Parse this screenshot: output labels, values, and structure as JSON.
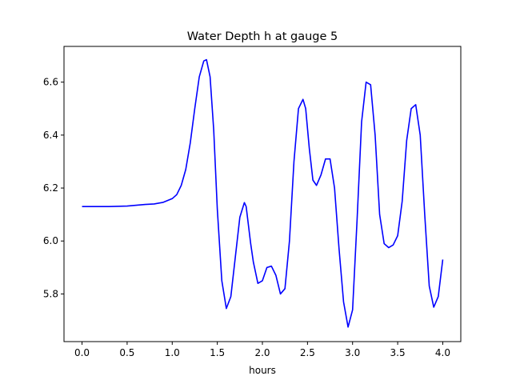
{
  "chart_data": {
    "type": "line",
    "title": "Water Depth h at gauge 5",
    "xlabel": "hours",
    "ylabel": "",
    "xlim": [
      -0.2,
      4.2
    ],
    "ylim": [
      5.62,
      6.735
    ],
    "xticks": [
      0.0,
      0.5,
      1.0,
      1.5,
      2.0,
      2.5,
      3.0,
      3.5,
      4.0
    ],
    "xtick_labels": [
      "0.0",
      "0.5",
      "1.0",
      "1.5",
      "2.0",
      "2.5",
      "3.0",
      "3.5",
      "4.0"
    ],
    "yticks": [
      5.8,
      6.0,
      6.2,
      6.4,
      6.6
    ],
    "ytick_labels": [
      "5.8",
      "6.0",
      "6.2",
      "6.4",
      "6.6"
    ],
    "grid": false,
    "legend": "none",
    "series": [
      {
        "color": "#0000ff",
        "x": [
          0.0,
          0.3,
          0.5,
          0.6,
          0.7,
          0.8,
          0.9,
          1.0,
          1.05,
          1.1,
          1.15,
          1.2,
          1.25,
          1.3,
          1.35,
          1.38,
          1.42,
          1.46,
          1.5,
          1.55,
          1.6,
          1.65,
          1.7,
          1.75,
          1.8,
          1.82,
          1.87,
          1.9,
          1.95,
          2.0,
          2.05,
          2.1,
          2.15,
          2.2,
          2.25,
          2.3,
          2.35,
          2.4,
          2.45,
          2.48,
          2.52,
          2.56,
          2.6,
          2.65,
          2.7,
          2.75,
          2.8,
          2.85,
          2.9,
          2.95,
          3.0,
          3.05,
          3.1,
          3.15,
          3.2,
          3.25,
          3.3,
          3.35,
          3.4,
          3.45,
          3.5,
          3.55,
          3.6,
          3.65,
          3.7,
          3.75,
          3.8,
          3.85,
          3.9,
          3.95,
          4.0
        ],
        "y": [
          6.13,
          6.13,
          6.132,
          6.135,
          6.138,
          6.14,
          6.146,
          6.16,
          6.175,
          6.21,
          6.27,
          6.37,
          6.5,
          6.62,
          6.68,
          6.685,
          6.62,
          6.42,
          6.12,
          5.85,
          5.745,
          5.79,
          5.94,
          6.09,
          6.145,
          6.13,
          5.99,
          5.92,
          5.84,
          5.85,
          5.9,
          5.905,
          5.87,
          5.8,
          5.82,
          6.0,
          6.3,
          6.5,
          6.535,
          6.5,
          6.35,
          6.23,
          6.21,
          6.25,
          6.31,
          6.31,
          6.2,
          5.97,
          5.77,
          5.675,
          5.74,
          6.08,
          6.45,
          6.6,
          6.59,
          6.4,
          6.1,
          5.99,
          5.975,
          5.985,
          6.02,
          6.15,
          6.38,
          6.5,
          6.515,
          6.4,
          6.1,
          5.83,
          5.75,
          5.79,
          5.93
        ]
      }
    ]
  }
}
